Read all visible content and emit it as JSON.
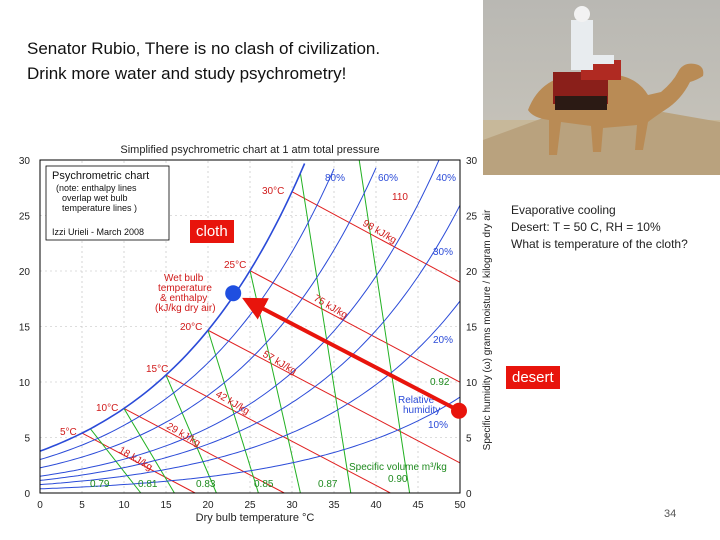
{
  "slide": {
    "title_line1": "Senator Rubio, There is no clash of civilization.",
    "title_line2": "Drink more water and study psychrometry!",
    "page_number": "34"
  },
  "side_text": {
    "heading": "Evaporative cooling",
    "line1": "Desert:  T = 50 C, RH = 10%",
    "line2": "What is temperature of the cloth?"
  },
  "tags": {
    "cloth": "cloth",
    "desert": "desert"
  },
  "chart": {
    "title": "Simplified psychrometric chart at 1 atm total pressure",
    "xlabel": "Dry bulb temperature °C",
    "ylabel": "Specific humidity (ω) grams moisture / kilogram dry air",
    "x_ticks": [
      "0",
      "5",
      "10",
      "15",
      "20",
      "25",
      "30",
      "35",
      "40",
      "45",
      "50"
    ],
    "y_ticks_left": [
      "0",
      "5",
      "10",
      "15",
      "20",
      "25",
      "30"
    ],
    "y_ticks_right": [
      "0",
      "5",
      "10",
      "15",
      "20",
      "25",
      "30"
    ],
    "legend_box": {
      "line1": "Psychrometric chart",
      "line2": "(note: enthalpy lines",
      "line3": "overlap wet bulb",
      "line4": "temperature lines )",
      "line5": "Izzi Urieli - March 2008"
    },
    "wet_bulb_label": {
      "line1": "Wet bulb",
      "line2": "temperature",
      "line3": "& enthalpy",
      "line4": "(kJ/kg dry air)"
    },
    "relative_humidity_label": {
      "line1": "Relative",
      "line2": "humidity"
    },
    "specific_volume_label": "Specific volume m³/kg",
    "rh_labels": [
      "80%",
      "60%",
      "40%",
      "30%",
      "20%",
      "10%"
    ],
    "wet_bulb_temps": [
      "30°C",
      "25°C",
      "20°C",
      "15°C",
      "10°C",
      "5°C"
    ],
    "enthalpy_labels": [
      "110",
      "98 kJ/kg",
      "75 kJ/kg",
      "57 kJ/kg",
      "42 kJ/kg",
      "29 kJ/kg",
      "18 kJ/kg"
    ],
    "specific_volumes": [
      "0.79",
      "0.81",
      "0.83",
      "0.85",
      "0.87",
      "0.90",
      "0.92"
    ]
  },
  "chart_data": {
    "type": "line",
    "x_range": [
      0,
      50
    ],
    "y_range": [
      0,
      30
    ],
    "rh_curves_percent": [
      100,
      80,
      60,
      40,
      30,
      20,
      10
    ],
    "desert_point": {
      "t": 50,
      "w": 7.5
    },
    "cloth_point": {
      "t": 23,
      "w": 18
    }
  },
  "colors": {
    "rh_line": "#2b4bd8",
    "enthalpy_line": "#e02020",
    "volume_line": "#22b122",
    "arrow": "#e8140c",
    "point_desert": "#e8140c",
    "point_cloth": "#1f4fe0"
  }
}
